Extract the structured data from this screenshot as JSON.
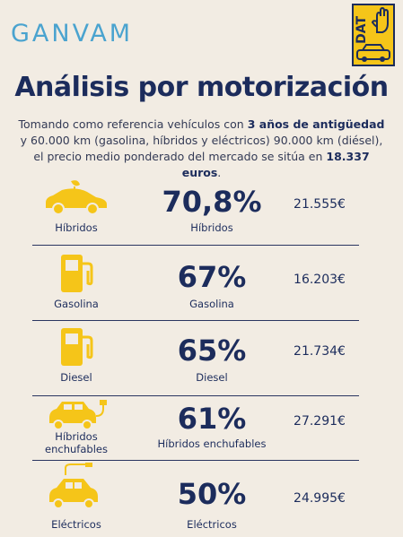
{
  "brand": {
    "ganvam": "GANVAM",
    "dat": "DAT"
  },
  "title": "Análisis por motorización",
  "intro": {
    "t1": "Tomando como referencia vehículos con ",
    "b1": "3 años de antigüedad",
    "t2": " y 60.000 km (gasolina, híbridos y eléctricos) 90.000 km (diésel), el precio medio ponderado del mercado se sitúa en ",
    "b2": "18.337 euros",
    "t3": "."
  },
  "rows": [
    {
      "icon": "hybrid-car-icon",
      "icon_label": "Híbridos",
      "percent": "70,8%",
      "percent_label": "Híbridos",
      "price": "21.555€"
    },
    {
      "icon": "fuel-pump-icon",
      "icon_label": "Gasolina",
      "percent": "67%",
      "percent_label": "Gasolina",
      "price": "16.203€"
    },
    {
      "icon": "fuel-pump-icon",
      "icon_label": "Diesel",
      "percent": "65%",
      "percent_label": "Diesel",
      "price": "21.734€"
    },
    {
      "icon": "plug-in-car-icon",
      "icon_label": "Híbridos enchufables",
      "percent": "61%",
      "percent_label": "Híbridos enchufables",
      "price": "27.291€"
    },
    {
      "icon": "electric-car-icon",
      "icon_label": "Eléctricos",
      "percent": "50%",
      "percent_label": "Eléctricos",
      "price": "24.995€"
    }
  ],
  "colors": {
    "icon_yellow": "#f5c519",
    "navy": "#1c2c5c",
    "ganvam_blue": "#4aa3cf",
    "background": "#f2ece3"
  }
}
